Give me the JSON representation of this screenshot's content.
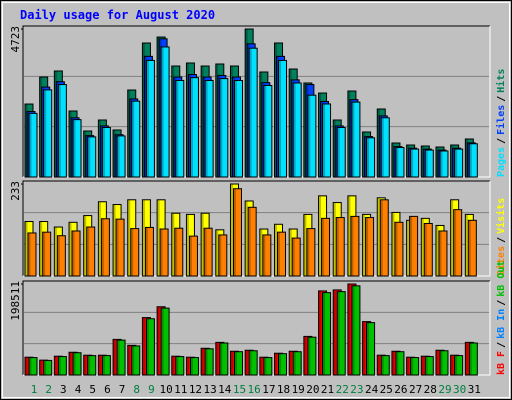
{
  "title": "Daily usage for August 2020",
  "legend_separator": "/",
  "chart_data": [
    {
      "type": "bar",
      "categories": [
        "1",
        "2",
        "3",
        "4",
        "5",
        "6",
        "7",
        "8",
        "9",
        "10",
        "11",
        "12",
        "13",
        "14",
        "15",
        "16",
        "17",
        "18",
        "19",
        "20",
        "21",
        "22",
        "23",
        "24",
        "25",
        "26",
        "27",
        "28",
        "29",
        "30",
        "31"
      ],
      "category_colors": [
        "#008040",
        "#008040",
        "#000000",
        "#000000",
        "#000000",
        "#000000",
        "#000000",
        "#008040",
        "#008040",
        "#000000",
        "#000000",
        "#000000",
        "#000000",
        "#000000",
        "#008040",
        "#008040",
        "#000000",
        "#000000",
        "#000000",
        "#000000",
        "#000000",
        "#008040",
        "#008040",
        "#000000",
        "#000000",
        "#000000",
        "#000000",
        "#000000",
        "#008040",
        "#008040",
        "#000000"
      ],
      "ylim": [
        0,
        4723
      ],
      "yticks": [
        4723
      ],
      "grid": true,
      "legend_reversed": true,
      "series": [
        {
          "name": "Hits",
          "color": "#00805c",
          "values": [
            2329,
            3191,
            3383,
            2106,
            1468,
            1819,
            1500,
            2776,
            4276,
            4467,
            3542,
            3638,
            3542,
            3606,
            3542,
            4723,
            3351,
            4276,
            3446,
            3000,
            2680,
            1819,
            2744,
            1436,
            2170,
            1085,
            1021,
            989,
            957,
            1021,
            1213
          ]
        },
        {
          "name": "Files",
          "color": "#0040ff",
          "values": [
            2090,
            2870,
            3040,
            1890,
            1320,
            1630,
            1350,
            2490,
            3850,
            4410,
            3190,
            3270,
            3190,
            3240,
            3190,
            4250,
            3010,
            3850,
            3100,
            2950,
            2410,
            1630,
            2470,
            1290,
            1950,
            970,
            920,
            890,
            860,
            920,
            1090
          ]
        },
        {
          "name": "Pages",
          "color": "#00e0ff",
          "values": [
            2030,
            2780,
            2950,
            1830,
            1280,
            1580,
            1310,
            2420,
            3720,
            4150,
            3080,
            3170,
            3080,
            3140,
            3080,
            4110,
            2920,
            3720,
            3000,
            2610,
            2330,
            1580,
            2390,
            1250,
            1890,
            940,
            890,
            860,
            830,
            890,
            1060
          ]
        }
      ]
    },
    {
      "type": "bar",
      "ylim": [
        0,
        233
      ],
      "yticks": [
        233
      ],
      "grid": true,
      "legend_reversed": true,
      "series": [
        {
          "name": "Visits",
          "color": "#ffff00",
          "values": [
            138,
            138,
            124,
            136,
            153,
            188,
            181,
            193,
            193,
            193,
            159,
            156,
            159,
            117,
            233,
            190,
            119,
            131,
            119,
            156,
            203,
            186,
            203,
            156,
            198,
            161,
            141,
            146,
            128,
            193,
            156
          ]
        },
        {
          "name": "Sites",
          "color": "#ff8000",
          "values": [
            109,
            111,
            102,
            114,
            124,
            145,
            144,
            120,
            123,
            119,
            121,
            101,
            121,
            104,
            221,
            174,
            104,
            111,
            96,
            120,
            146,
            148,
            151,
            148,
            193,
            136,
            151,
            133,
            114,
            168,
            141
          ]
        }
      ]
    },
    {
      "type": "bar",
      "ylim": [
        0,
        198511
      ],
      "yticks": [
        198511
      ],
      "grid": true,
      "legend_reversed": false,
      "series": [
        {
          "name": "kB F",
          "color": "#ff0000",
          "values": [
            38800,
            32400,
            41000,
            49600,
            43200,
            43200,
            77700,
            64700,
            125200,
            148900,
            41000,
            38800,
            58300,
            71200,
            51800,
            54000,
            38800,
            47500,
            51800,
            84200,
            183400,
            185600,
            198511,
            116500,
            43200,
            51800,
            38800,
            41000,
            54000,
            43200,
            71200
          ]
        },
        {
          "name": "kB In",
          "color": "#0080ff",
          "values": [
            0,
            0,
            0,
            0,
            0,
            0,
            0,
            0,
            0,
            0,
            0,
            0,
            0,
            0,
            0,
            0,
            0,
            0,
            0,
            0,
            0,
            0,
            0,
            0,
            0,
            0,
            0,
            0,
            0,
            0,
            0
          ]
        },
        {
          "name": "kB Out",
          "color": "#00c000",
          "values": [
            38000,
            31800,
            40200,
            48600,
            42300,
            42300,
            76100,
            63400,
            122700,
            145900,
            40200,
            38000,
            57100,
            69800,
            50800,
            52900,
            38000,
            46500,
            50800,
            82500,
            179700,
            181900,
            194500,
            114200,
            42300,
            50800,
            38000,
            40200,
            52900,
            42300,
            69800
          ]
        }
      ]
    }
  ]
}
